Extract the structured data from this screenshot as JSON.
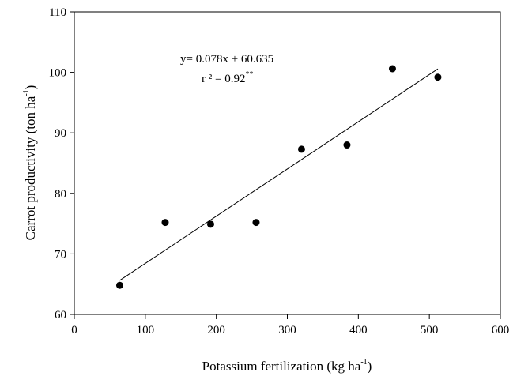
{
  "chart_data": {
    "type": "scatter",
    "title": "",
    "xlabel": {
      "main": "Potassium fertilization (kg ha",
      "sup": "-1",
      "tail": ")"
    },
    "ylabel": {
      "main": "Carrot productivity  (ton ha",
      "sup": "-1",
      "tail": ")"
    },
    "xlim": [
      0,
      600
    ],
    "ylim": [
      60,
      110
    ],
    "xticks": [
      0,
      100,
      200,
      300,
      400,
      500,
      600
    ],
    "yticks": [
      60,
      70,
      80,
      90,
      100,
      110
    ],
    "grid": false,
    "series": [
      {
        "x": [
          64,
          128,
          192,
          256,
          320,
          384,
          448,
          512
        ],
        "y": [
          64.8,
          75.2,
          74.9,
          75.2,
          87.3,
          88.0,
          100.6,
          99.2
        ],
        "marker": "circle",
        "color": "#000000"
      }
    ],
    "trendline": {
      "slope": 0.078,
      "intercept": 60.635,
      "x_range": [
        64,
        512
      ]
    },
    "annotations": {
      "equation": "y= 0.078x + 60.635",
      "r2_main": "r ² = 0.92",
      "r2_sup": "**"
    }
  }
}
